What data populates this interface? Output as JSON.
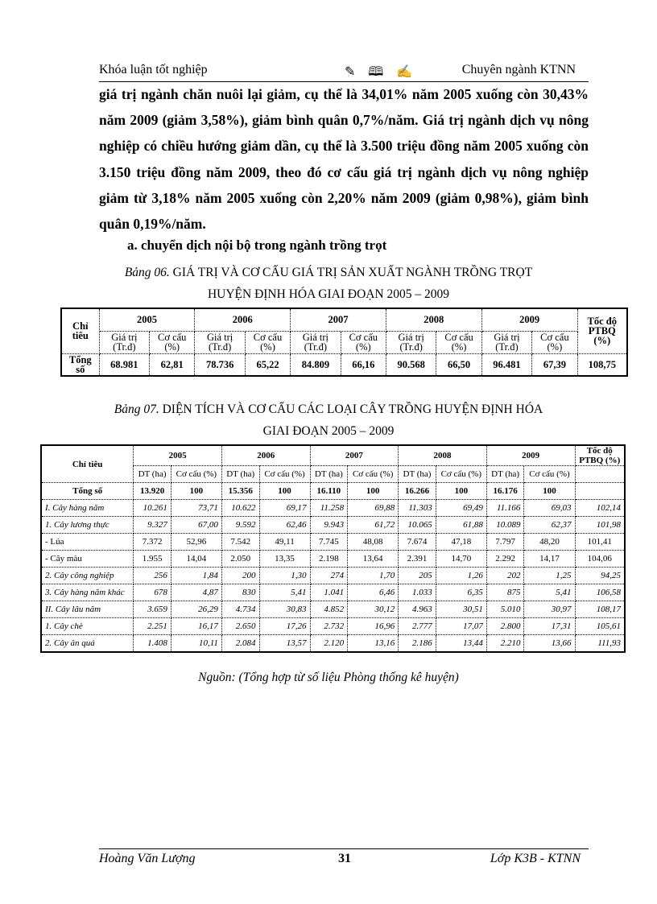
{
  "header": {
    "left": "Khóa luận tốt nghiệp",
    "ornament": "✎ 🕮 ✍",
    "right": "Chuyên ngành  KTNN"
  },
  "paragraph": "giá trị ngành chăn nuôi lại giảm, cụ thể là 34,01% năm 2005 xuống còn 30,43% năm 2009 (giảm 3,58%), giảm bình quân 0,7%/năm. Giá trị ngành dịch vụ nông nghiệp có chiều hướng giảm dần, cụ thể là 3.500 triệu đồng năm 2005 xuống còn 3.150 triệu đồng năm 2009, theo đó cơ cấu giá trị ngành dịch vụ nông nghiệp giảm từ 3,18% năm 2005 xuống còn 2,20% năm 2009 (giảm 0,98%), giảm bình quân 0,19%/năm.",
  "subheading": "a. chuyển dịch nội bộ trong ngành trồng trọt",
  "table1": {
    "caption_prefix": "Bảng 06.",
    "caption_line1": " GIÁ TRỊ VÀ CƠ CẤU GIÁ TRỊ SẢN XUẤT NGÀNH TRỒNG TRỌT",
    "caption_line2": "HUYỆN ĐỊNH HÓA GIAI ĐOẠN 2005 – 2009",
    "col_label": "Chỉ tiêu",
    "years": [
      "2005",
      "2006",
      "2007",
      "2008",
      "2009"
    ],
    "rate_label": "Tốc độ PTBQ (%)",
    "sub1": "Giá trị (Tr.đ)",
    "sub2": "Cơ cấu (%)",
    "rows": [
      {
        "label": "Tổng số",
        "values": [
          "68.981",
          "62,81",
          "78.736",
          "65,22",
          "84.809",
          "66,16",
          "90.568",
          "66,50",
          "96.481",
          "67,39",
          "108,75"
        ]
      }
    ]
  },
  "table2": {
    "caption_prefix": "Bảng 07.",
    "caption_line1": " DIỆN TÍCH VÀ CƠ CẤU CÁC LOẠI CÂY TRỒNG HUYỆN ĐỊNH HÓA",
    "caption_line2": "GIAI ĐOẠN 2005 – 2009",
    "col_label": "Chỉ tiêu",
    "years": [
      "2005",
      "2006",
      "2007",
      "2008",
      "2009"
    ],
    "rate_label": "Tốc độ PTBQ (%)",
    "sub1": "DT (ha)",
    "sub2": "Cơ cấu (%)",
    "rows": [
      {
        "label": "Tổng số",
        "style": "b",
        "values": [
          "13.920",
          "100",
          "15.356",
          "100",
          "16.110",
          "100",
          "16.266",
          "100",
          "16.176",
          "100",
          ""
        ]
      },
      {
        "label": "I. Cây hàng năm",
        "style": "it",
        "values": [
          "10.261",
          "73,71",
          "10.622",
          "69,17",
          "11.258",
          "69,88",
          "11.303",
          "69,49",
          "11.166",
          "69,03",
          "102,14"
        ]
      },
      {
        "label": "1. Cây lương thực",
        "style": "it",
        "values": [
          "9.327",
          "67,00",
          "9.592",
          "62,46",
          "9.943",
          "61,72",
          "10.065",
          "61,88",
          "10.089",
          "62,37",
          "101,98"
        ]
      },
      {
        "label": "- Lúa",
        "style": "",
        "values": [
          "7.372",
          "52,96",
          "7.542",
          "49,11",
          "7.745",
          "48,08",
          "7.674",
          "47,18",
          "7.797",
          "48,20",
          "101,41"
        ]
      },
      {
        "label": "- Cây màu",
        "style": "",
        "values": [
          "1.955",
          "14,04",
          "2.050",
          "13,35",
          "2.198",
          "13,64",
          "2.391",
          "14,70",
          "2.292",
          "14,17",
          "104,06"
        ]
      },
      {
        "label": "2. Cây công nghiệp",
        "style": "it",
        "values": [
          "256",
          "1,84",
          "200",
          "1,30",
          "274",
          "1,70",
          "205",
          "1,26",
          "202",
          "1,25",
          "94,25"
        ]
      },
      {
        "label": "3. Cây hàng năm khác",
        "style": "it",
        "values": [
          "678",
          "4,87",
          "830",
          "5,41",
          "1.041",
          "6,46",
          "1.033",
          "6,35",
          "875",
          "5,41",
          "106,58"
        ]
      },
      {
        "label": "II. Cây lâu năm",
        "style": "it",
        "values": [
          "3.659",
          "26,29",
          "4.734",
          "30,83",
          "4.852",
          "30,12",
          "4.963",
          "30,51",
          "5.010",
          "30,97",
          "108,17"
        ]
      },
      {
        "label": "1. Cây chè",
        "style": "it",
        "values": [
          "2.251",
          "16,17",
          "2.650",
          "17,26",
          "2.732",
          "16,96",
          "2.777",
          "17,07",
          "2.800",
          "17,31",
          "105,61"
        ]
      },
      {
        "label": "2. Cây ăn quả",
        "style": "it",
        "values": [
          "1.408",
          "10,11",
          "2.084",
          "13,57",
          "2.120",
          "13,16",
          "2.186",
          "13,44",
          "2.210",
          "13,66",
          "111,93"
        ]
      }
    ]
  },
  "source": "Nguồn: (Tổng hợp từ số liệu Phòng thống kê huyện)",
  "footer": {
    "left": "Hoàng Văn Lượng",
    "page": "31",
    "right": "Lớp K3B - KTNN"
  }
}
